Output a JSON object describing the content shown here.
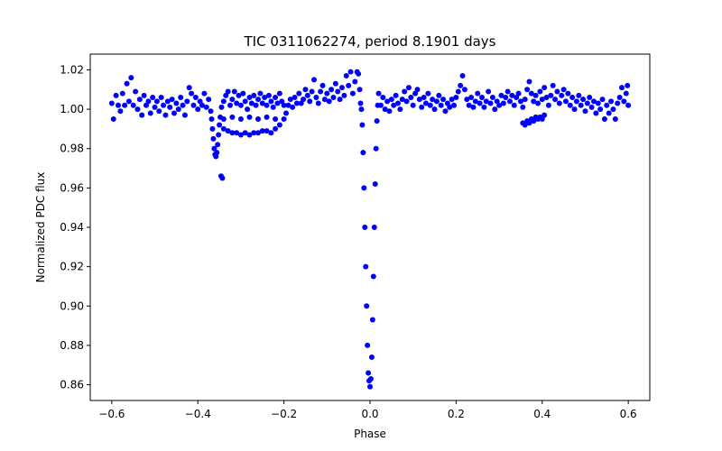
{
  "chart_data": {
    "type": "scatter",
    "title": "TIC 0311062274, period 8.1901 days",
    "xlabel": "Phase",
    "ylabel": "Normalized PDC flux",
    "xlim": [
      -0.65,
      0.65
    ],
    "ylim": [
      0.852,
      1.028
    ],
    "grid": false,
    "x_ticks": [
      -0.6,
      -0.4,
      -0.2,
      0.0,
      0.2,
      0.4,
      0.6
    ],
    "x_tick_labels": [
      "−0.6",
      "−0.4",
      "−0.2",
      "0.0",
      "0.2",
      "0.4",
      "0.6"
    ],
    "y_ticks": [
      0.86,
      0.88,
      0.9,
      0.92,
      0.94,
      0.96,
      0.98,
      1.0,
      1.02
    ],
    "y_tick_labels": [
      "0.86",
      "0.88",
      "0.90",
      "0.92",
      "0.94",
      "0.96",
      "0.98",
      "1.00",
      "1.02"
    ],
    "series": [
      {
        "color": "#0000ff",
        "marker": "circle",
        "points": [
          [
            -0.6,
            1.003
          ],
          [
            -0.596,
            0.995
          ],
          [
            -0.59,
            1.007
          ],
          [
            -0.585,
            1.002
          ],
          [
            -0.58,
            0.999
          ],
          [
            -0.575,
            1.008
          ],
          [
            -0.57,
            1.002
          ],
          [
            -0.565,
            1.013
          ],
          [
            -0.56,
            1.004
          ],
          [
            -0.555,
            1.016
          ],
          [
            -0.55,
            1.002
          ],
          [
            -0.545,
            1.009
          ],
          [
            -0.54,
            1.0
          ],
          [
            -0.535,
            1.005
          ],
          [
            -0.53,
            0.997
          ],
          [
            -0.525,
            1.007
          ],
          [
            -0.52,
            1.002
          ],
          [
            -0.515,
            1.004
          ],
          [
            -0.51,
            0.998
          ],
          [
            -0.505,
            1.006
          ],
          [
            -0.5,
            1.001
          ],
          [
            -0.495,
            1.004
          ],
          [
            -0.49,
            0.999
          ],
          [
            -0.485,
            1.006
          ],
          [
            -0.48,
            1.002
          ],
          [
            -0.475,
            0.997
          ],
          [
            -0.47,
            1.004
          ],
          [
            -0.465,
            1.001
          ],
          [
            -0.46,
            1.005
          ],
          [
            -0.455,
            0.998
          ],
          [
            -0.45,
            1.003
          ],
          [
            -0.445,
            1.0
          ],
          [
            -0.44,
            1.006
          ],
          [
            -0.435,
            1.002
          ],
          [
            -0.43,
            0.997
          ],
          [
            -0.425,
            1.004
          ],
          [
            -0.42,
            1.011
          ],
          [
            -0.415,
            1.008
          ],
          [
            -0.41,
            1.002
          ],
          [
            -0.405,
            1.006
          ],
          [
            -0.4,
            1.0
          ],
          [
            -0.395,
            1.004
          ],
          [
            -0.39,
            1.002
          ],
          [
            -0.385,
            1.008
          ],
          [
            -0.38,
            1.001
          ],
          [
            -0.375,
            1.005
          ],
          [
            -0.37,
            0.999
          ],
          [
            -0.368,
            0.995
          ],
          [
            -0.366,
            0.99
          ],
          [
            -0.364,
            0.985
          ],
          [
            -0.362,
            0.98
          ],
          [
            -0.36,
            0.977
          ],
          [
            -0.358,
            0.976
          ],
          [
            -0.356,
            0.978
          ],
          [
            -0.354,
            0.982
          ],
          [
            -0.352,
            0.987
          ],
          [
            -0.35,
            0.992
          ],
          [
            -0.348,
            0.996
          ],
          [
            -0.346,
            0.966
          ],
          [
            -0.343,
            0.965
          ],
          [
            -0.345,
            1.001
          ],
          [
            -0.34,
            1.004
          ],
          [
            -0.335,
            1.007
          ],
          [
            -0.33,
            1.009
          ],
          [
            -0.325,
            1.002
          ],
          [
            -0.32,
            1.005
          ],
          [
            -0.315,
            1.009
          ],
          [
            -0.31,
            1.003
          ],
          [
            -0.305,
            1.007
          ],
          [
            -0.3,
            1.002
          ],
          [
            -0.295,
            1.008
          ],
          [
            -0.29,
            1.004
          ],
          [
            -0.285,
            1.0
          ],
          [
            -0.28,
            1.006
          ],
          [
            -0.275,
            1.003
          ],
          [
            -0.27,
            1.007
          ],
          [
            -0.265,
            1.002
          ],
          [
            -0.26,
            1.005
          ],
          [
            -0.255,
            1.008
          ],
          [
            -0.25,
            1.003
          ],
          [
            -0.245,
            1.006
          ],
          [
            -0.24,
            1.002
          ],
          [
            -0.235,
            1.007
          ],
          [
            -0.23,
            1.004
          ],
          [
            -0.225,
            1.001
          ],
          [
            -0.22,
            1.006
          ],
          [
            -0.215,
            1.003
          ],
          [
            -0.21,
            1.008
          ],
          [
            -0.205,
            1.004
          ],
          [
            -0.2,
            1.002
          ],
          [
            -0.34,
            0.99
          ],
          [
            -0.33,
            0.989
          ],
          [
            -0.32,
            0.988
          ],
          [
            -0.31,
            0.988
          ],
          [
            -0.3,
            0.987
          ],
          [
            -0.29,
            0.988
          ],
          [
            -0.28,
            0.987
          ],
          [
            -0.27,
            0.988
          ],
          [
            -0.26,
            0.988
          ],
          [
            -0.25,
            0.989
          ],
          [
            -0.24,
            0.989
          ],
          [
            -0.23,
            0.988
          ],
          [
            -0.22,
            0.99
          ],
          [
            -0.21,
            0.992
          ],
          [
            -0.2,
            0.995
          ],
          [
            -0.195,
            0.998
          ],
          [
            -0.34,
            0.995
          ],
          [
            -0.32,
            0.996
          ],
          [
            -0.3,
            0.995
          ],
          [
            -0.28,
            0.996
          ],
          [
            -0.26,
            0.995
          ],
          [
            -0.24,
            0.996
          ],
          [
            -0.22,
            0.995
          ],
          [
            -0.19,
            1.002
          ],
          [
            -0.185,
            1.005
          ],
          [
            -0.18,
            1.001
          ],
          [
            -0.175,
            1.006
          ],
          [
            -0.17,
            1.003
          ],
          [
            -0.165,
            1.008
          ],
          [
            -0.16,
            1.003
          ],
          [
            -0.155,
            1.005
          ],
          [
            -0.15,
            1.01
          ],
          [
            -0.145,
            1.007
          ],
          [
            -0.14,
            1.004
          ],
          [
            -0.135,
            1.009
          ],
          [
            -0.13,
            1.015
          ],
          [
            -0.125,
            1.006
          ],
          [
            -0.12,
            1.003
          ],
          [
            -0.115,
            1.009
          ],
          [
            -0.11,
            1.012
          ],
          [
            -0.105,
            1.005
          ],
          [
            -0.1,
            1.008
          ],
          [
            -0.095,
            1.004
          ],
          [
            -0.09,
            1.01
          ],
          [
            -0.085,
            1.006
          ],
          [
            -0.08,
            1.013
          ],
          [
            -0.075,
            1.009
          ],
          [
            -0.07,
            1.005
          ],
          [
            -0.065,
            1.011
          ],
          [
            -0.06,
            1.007
          ],
          [
            -0.055,
            1.017
          ],
          [
            -0.05,
            1.012
          ],
          [
            -0.045,
            1.019
          ],
          [
            -0.04,
            1.008
          ],
          [
            -0.035,
            1.014
          ],
          [
            -0.03,
            1.019
          ],
          [
            -0.027,
            1.018
          ],
          [
            -0.024,
            1.01
          ],
          [
            -0.022,
            1.003
          ],
          [
            -0.02,
            1.0
          ],
          [
            -0.018,
            0.992
          ],
          [
            -0.016,
            0.978
          ],
          [
            -0.014,
            0.96
          ],
          [
            -0.012,
            0.94
          ],
          [
            -0.01,
            0.92
          ],
          [
            -0.008,
            0.9
          ],
          [
            -0.006,
            0.88
          ],
          [
            -0.004,
            0.866
          ],
          [
            -0.002,
            0.862
          ],
          [
            0.0,
            0.859
          ],
          [
            0.002,
            0.863
          ],
          [
            0.004,
            0.874
          ],
          [
            0.006,
            0.893
          ],
          [
            0.008,
            0.915
          ],
          [
            0.01,
            0.94
          ],
          [
            0.012,
            0.962
          ],
          [
            0.014,
            0.98
          ],
          [
            0.016,
            0.994
          ],
          [
            0.018,
            1.002
          ],
          [
            0.02,
            1.008
          ],
          [
            0.025,
            1.002
          ],
          [
            0.03,
            1.006
          ],
          [
            0.035,
            1.0
          ],
          [
            0.04,
            1.004
          ],
          [
            0.045,
            0.999
          ],
          [
            0.05,
            1.005
          ],
          [
            0.055,
            1.002
          ],
          [
            0.06,
            1.007
          ],
          [
            0.065,
            1.003
          ],
          [
            0.07,
            1.0
          ],
          [
            0.075,
            1.005
          ],
          [
            0.08,
            1.009
          ],
          [
            0.085,
            1.004
          ],
          [
            0.09,
            1.011
          ],
          [
            0.095,
            1.006
          ],
          [
            0.1,
            1.002
          ],
          [
            0.105,
            1.008
          ],
          [
            0.11,
            1.01
          ],
          [
            0.115,
            1.005
          ],
          [
            0.12,
            1.001
          ],
          [
            0.125,
            1.006
          ],
          [
            0.13,
            1.003
          ],
          [
            0.135,
            1.008
          ],
          [
            0.14,
            1.002
          ],
          [
            0.145,
            1.005
          ],
          [
            0.15,
            1.0
          ],
          [
            0.155,
            1.004
          ],
          [
            0.16,
            1.007
          ],
          [
            0.165,
            1.002
          ],
          [
            0.17,
            1.005
          ],
          [
            0.175,
            0.999
          ],
          [
            0.18,
            1.003
          ],
          [
            0.185,
            1.001
          ],
          [
            0.19,
            1.005
          ],
          [
            0.195,
            1.002
          ],
          [
            0.2,
            1.006
          ],
          [
            0.205,
            1.009
          ],
          [
            0.21,
            1.012
          ],
          [
            0.215,
            1.017
          ],
          [
            0.22,
            1.01
          ],
          [
            0.225,
            1.005
          ],
          [
            0.23,
            1.002
          ],
          [
            0.235,
            1.006
          ],
          [
            0.24,
            1.001
          ],
          [
            0.245,
            1.004
          ],
          [
            0.25,
            1.008
          ],
          [
            0.255,
            1.003
          ],
          [
            0.26,
            1.006
          ],
          [
            0.265,
            1.001
          ],
          [
            0.27,
            1.004
          ],
          [
            0.275,
            1.009
          ],
          [
            0.28,
            1.003
          ],
          [
            0.285,
            1.006
          ],
          [
            0.29,
            1.0
          ],
          [
            0.295,
            1.004
          ],
          [
            0.3,
            1.002
          ],
          [
            0.305,
            1.007
          ],
          [
            0.31,
            1.003
          ],
          [
            0.315,
            1.006
          ],
          [
            0.32,
            1.009
          ],
          [
            0.325,
            1.004
          ],
          [
            0.33,
            1.007
          ],
          [
            0.335,
            1.002
          ],
          [
            0.34,
            1.006
          ],
          [
            0.345,
            1.008
          ],
          [
            0.35,
            1.004
          ],
          [
            0.355,
            1.001
          ],
          [
            0.36,
            1.005
          ],
          [
            0.365,
            1.01
          ],
          [
            0.37,
            1.014
          ],
          [
            0.375,
            1.008
          ],
          [
            0.38,
            1.004
          ],
          [
            0.385,
            1.007
          ],
          [
            0.39,
            1.003
          ],
          [
            0.355,
            0.993
          ],
          [
            0.36,
            0.992
          ],
          [
            0.365,
            0.994
          ],
          [
            0.37,
            0.993
          ],
          [
            0.375,
            0.995
          ],
          [
            0.38,
            0.994
          ],
          [
            0.385,
            0.996
          ],
          [
            0.39,
            0.995
          ],
          [
            0.395,
            0.996
          ],
          [
            0.4,
            0.995
          ],
          [
            0.405,
            0.997
          ],
          [
            0.395,
            1.009
          ],
          [
            0.4,
            1.005
          ],
          [
            0.405,
            1.011
          ],
          [
            0.41,
            1.006
          ],
          [
            0.415,
            1.002
          ],
          [
            0.42,
            1.007
          ],
          [
            0.425,
            1.012
          ],
          [
            0.43,
            1.005
          ],
          [
            0.435,
            1.009
          ],
          [
            0.44,
            1.003
          ],
          [
            0.445,
            1.007
          ],
          [
            0.45,
            1.01
          ],
          [
            0.455,
            1.004
          ],
          [
            0.46,
            1.008
          ],
          [
            0.465,
            1.002
          ],
          [
            0.47,
            1.006
          ],
          [
            0.475,
            1.0
          ],
          [
            0.48,
            1.004
          ],
          [
            0.485,
            1.007
          ],
          [
            0.49,
            1.002
          ],
          [
            0.495,
            1.005
          ],
          [
            0.5,
            0.999
          ],
          [
            0.505,
            1.003
          ],
          [
            0.51,
            1.006
          ],
          [
            0.515,
            1.001
          ],
          [
            0.52,
            1.004
          ],
          [
            0.525,
            0.998
          ],
          [
            0.53,
            1.003
          ],
          [
            0.535,
            1.0
          ],
          [
            0.54,
            1.005
          ],
          [
            0.545,
            0.995
          ],
          [
            0.55,
            1.002
          ],
          [
            0.555,
            0.998
          ],
          [
            0.56,
            1.004
          ],
          [
            0.565,
            1.0
          ],
          [
            0.57,
            0.995
          ],
          [
            0.575,
            1.003
          ],
          [
            0.58,
            1.006
          ],
          [
            0.585,
            1.011
          ],
          [
            0.59,
            1.004
          ],
          [
            0.595,
            1.008
          ],
          [
            0.598,
            1.012
          ],
          [
            0.6,
            1.002
          ]
        ]
      }
    ]
  }
}
